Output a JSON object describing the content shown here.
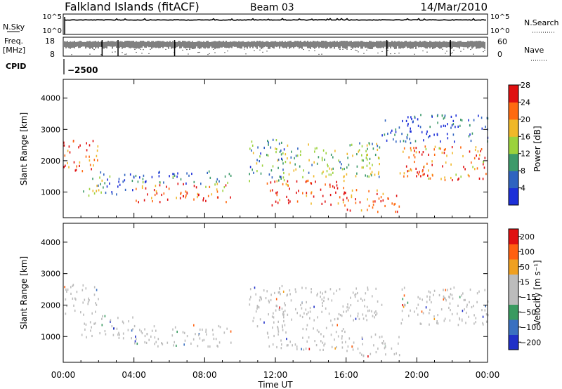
{
  "header": {
    "station": "Falkland Islands (fitACF)",
    "beam": "Beam 03",
    "date": "14/Mar/2010"
  },
  "top_panels": {
    "nsky_label": "N.Sky",
    "nsky_ticks": [
      "10^5",
      "10^0"
    ],
    "nsearch_label": "N.Search",
    "freq_label_1": "Freq.",
    "freq_label_2": "[MHz]",
    "freq_ticks": [
      "18",
      "8"
    ],
    "nave_label": "Nave",
    "nave_ticks": [
      "60",
      "0"
    ],
    "cpid_label": "CPID",
    "cpid_value": "−2500"
  },
  "x_axis": {
    "label": "Time UT",
    "ticks": [
      "00:00",
      "04:00",
      "08:00",
      "12:00",
      "16:00",
      "20:00",
      "00:00"
    ]
  },
  "chart_data": [
    {
      "type": "heatmap",
      "quantity": "Power",
      "colorbar_label": "Power [dB]",
      "colorbar_ticks": [
        "4",
        "8",
        "12",
        "16",
        "20",
        "24",
        "28"
      ],
      "colors": [
        "#1c2fd8",
        "#2f63c0",
        "#3d9a6a",
        "#9bd23c",
        "#f0b828",
        "#ff6a10",
        "#e01010"
      ],
      "ylabel": "Slant Range [km]",
      "y_ticks": [
        "1000",
        "2000",
        "3000",
        "4000"
      ],
      "ylim": [
        180,
        4600
      ],
      "xlim_hours": [
        0,
        24
      ],
      "regions": [
        {
          "t0": 0.0,
          "t1": 2.0,
          "r0": 1700,
          "r1": 2700,
          "p": 26
        },
        {
          "t0": 1.0,
          "t1": 2.2,
          "r0": 900,
          "r1": 1500,
          "p": 14
        },
        {
          "t0": 2.0,
          "t1": 4.0,
          "r0": 950,
          "r1": 1700,
          "p": 8
        },
        {
          "t0": 4.0,
          "t1": 9.5,
          "r0": 700,
          "r1": 1300,
          "p": 24
        },
        {
          "t0": 4.0,
          "t1": 9.5,
          "r0": 1300,
          "r1": 1700,
          "p": 9
        },
        {
          "t0": 10.5,
          "t1": 12.5,
          "r0": 1300,
          "r1": 2700,
          "p": 12
        },
        {
          "t0": 11.5,
          "t1": 16.0,
          "r0": 600,
          "r1": 1400,
          "p": 27
        },
        {
          "t0": 12.0,
          "t1": 18.0,
          "r0": 1500,
          "r1": 2600,
          "p": 15
        },
        {
          "t0": 16.0,
          "t1": 19.0,
          "r0": 400,
          "r1": 1100,
          "p": 25
        },
        {
          "t0": 19.0,
          "t1": 24.0,
          "r0": 1400,
          "r1": 2500,
          "p": 24
        },
        {
          "t0": 18.0,
          "t1": 24.0,
          "r0": 2600,
          "r1": 3500,
          "p": 6
        }
      ]
    },
    {
      "type": "heatmap",
      "quantity": "Velocity",
      "colorbar_label": "Velocity [m s⁻¹]",
      "colorbar_ticks": [
        "200",
        "100",
        "50",
        "15",
        "−15",
        "−50",
        "−100",
        "−200"
      ],
      "colors": [
        "#2030c8",
        "#3a70c0",
        "#3a9a60",
        "#bcbcbc",
        "#bcbcbc",
        "#f0a020",
        "#ff6010",
        "#e01010"
      ],
      "ylabel": "Slant Range [km]",
      "y_ticks": [
        "1000",
        "2000",
        "3000",
        "4000"
      ],
      "ylim": [
        180,
        4600
      ],
      "xlim_hours": [
        0,
        24
      ],
      "regions": [
        {
          "t0": 0.0,
          "t1": 2.0,
          "r0": 1700,
          "r1": 2700,
          "v": 0
        },
        {
          "t0": 1.0,
          "t1": 2.2,
          "r0": 900,
          "r1": 1500,
          "v": 0
        },
        {
          "t0": 2.0,
          "t1": 4.0,
          "r0": 950,
          "r1": 1700,
          "v": 0
        },
        {
          "t0": 4.0,
          "t1": 9.5,
          "r0": 700,
          "r1": 1400,
          "v": 0
        },
        {
          "t0": 10.5,
          "t1": 12.5,
          "r0": 1300,
          "r1": 2700,
          "v": 0
        },
        {
          "t0": 11.5,
          "t1": 16.0,
          "r0": 600,
          "r1": 1400,
          "v": 0
        },
        {
          "t0": 12.0,
          "t1": 18.0,
          "r0": 1500,
          "r1": 2600,
          "v": 0
        },
        {
          "t0": 16.0,
          "t1": 19.0,
          "r0": 400,
          "r1": 1100,
          "v": 0
        },
        {
          "t0": 19.0,
          "t1": 24.0,
          "r0": 1400,
          "r1": 2600,
          "v": 0
        }
      ]
    }
  ]
}
